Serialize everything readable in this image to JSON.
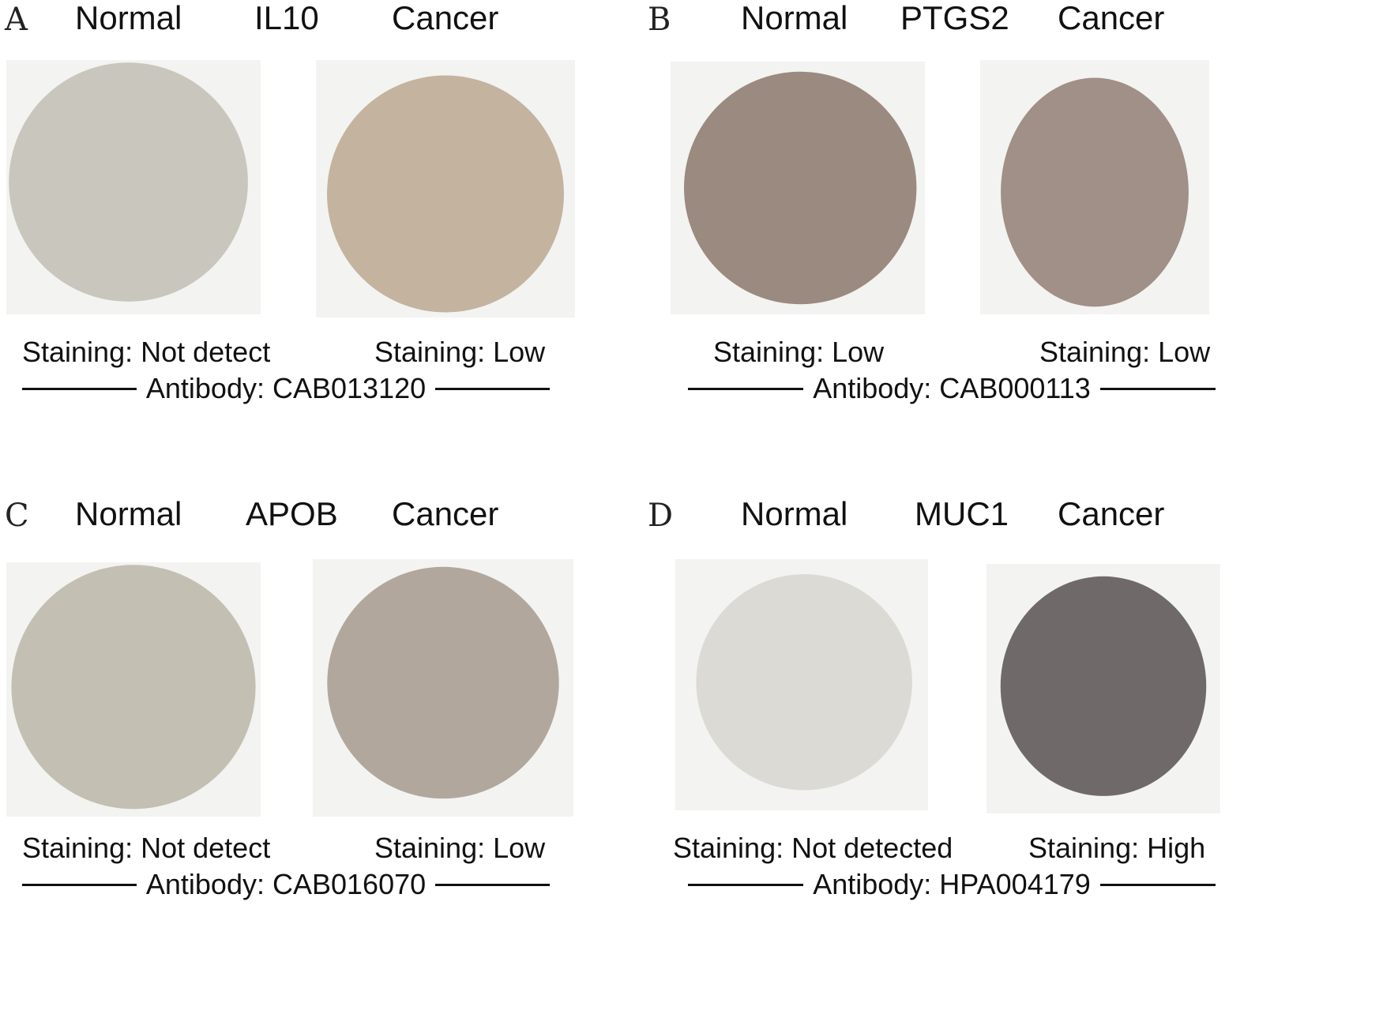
{
  "panels": [
    {
      "letter": "A",
      "normal_label": "Normal",
      "gene": "IL10",
      "cancer_label": "Cancer",
      "normal_staining": "Staining: Not detect",
      "cancer_staining": "Staining: Low",
      "antibody": "Antibody: CAB013120",
      "normal_tissue_color": "#c9c6bd",
      "cancer_tissue_color": "#c4b39f"
    },
    {
      "letter": "B",
      "normal_label": "Normal",
      "gene": "PTGS2",
      "cancer_label": "Cancer",
      "normal_staining": "Staining: Low",
      "cancer_staining": "Staining: Low",
      "antibody": "Antibody: CAB000113",
      "normal_tissue_color": "#9b8a80",
      "cancer_tissue_color": "#a09088"
    },
    {
      "letter": "C",
      "normal_label": "Normal",
      "gene": "APOB",
      "cancer_label": "Cancer",
      "normal_staining": "Staining: Not detect",
      "cancer_staining": "Staining: Low",
      "antibody": "Antibody: CAB016070",
      "normal_tissue_color": "#c4bfb3",
      "cancer_tissue_color": "#b1a79c"
    },
    {
      "letter": "D",
      "normal_label": "Normal",
      "gene": "MUC1",
      "cancer_label": "Cancer",
      "normal_staining": "Staining: Not detected",
      "cancer_staining": "Staining: High",
      "antibody": "Antibody: HPA004179",
      "normal_tissue_color": "#dcdad4",
      "cancer_tissue_color": "#6f6a69"
    }
  ]
}
